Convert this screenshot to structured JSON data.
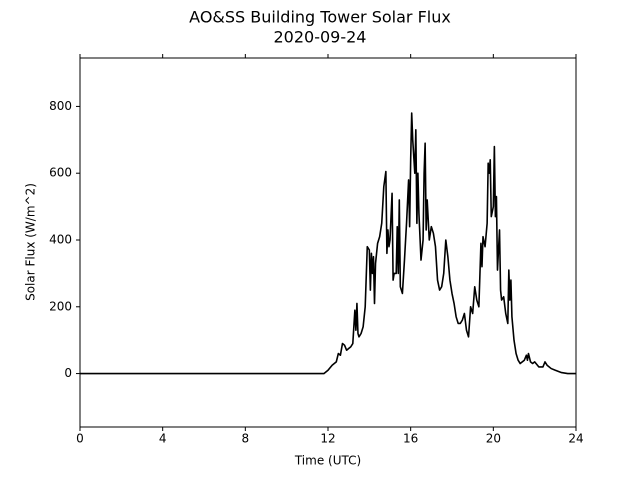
{
  "chart_data": {
    "type": "line",
    "title": "AO&SS Building Tower Solar Flux",
    "subtitle": "2020-09-24",
    "x_label": "Time (UTC)",
    "y_label": "Solar Flux (W/m^2)",
    "color": "#000000",
    "xlim": [
      0,
      24
    ],
    "xticks": [
      0,
      4,
      8,
      12,
      16,
      20,
      24
    ],
    "ylim": [
      -160,
      945
    ],
    "yticks": [
      0,
      200,
      400,
      600,
      800
    ],
    "x": [
      0,
      11.8,
      12.0,
      12.2,
      12.4,
      12.5,
      12.6,
      12.7,
      12.8,
      12.9,
      13.0,
      13.1,
      13.2,
      13.3,
      13.35,
      13.4,
      13.45,
      13.5,
      13.6,
      13.7,
      13.8,
      13.9,
      14.0,
      14.05,
      14.1,
      14.15,
      14.2,
      14.25,
      14.3,
      14.4,
      14.5,
      14.6,
      14.7,
      14.8,
      14.85,
      14.9,
      14.95,
      15.0,
      15.1,
      15.15,
      15.2,
      15.3,
      15.35,
      15.4,
      15.45,
      15.5,
      15.6,
      15.7,
      15.8,
      15.9,
      15.95,
      16.0,
      16.05,
      16.1,
      16.2,
      16.25,
      16.3,
      16.35,
      16.4,
      16.5,
      16.6,
      16.65,
      16.7,
      16.75,
      16.8,
      16.9,
      17.0,
      17.1,
      17.2,
      17.3,
      17.4,
      17.5,
      17.6,
      17.7,
      17.8,
      17.9,
      18.0,
      18.1,
      18.2,
      18.3,
      18.4,
      18.5,
      18.6,
      18.7,
      18.8,
      18.9,
      19.0,
      19.1,
      19.2,
      19.3,
      19.4,
      19.45,
      19.5,
      19.6,
      19.7,
      19.75,
      19.8,
      19.85,
      19.9,
      20.0,
      20.05,
      20.1,
      20.15,
      20.2,
      20.3,
      20.35,
      20.4,
      20.5,
      20.6,
      20.7,
      20.75,
      20.8,
      20.85,
      20.9,
      21.0,
      21.1,
      21.2,
      21.3,
      21.5,
      21.6,
      21.65,
      21.7,
      21.8,
      21.9,
      22.0,
      22.2,
      22.4,
      22.5,
      22.6,
      22.8,
      23.0,
      23.3,
      23.6,
      24
    ],
    "values": [
      0,
      0,
      10,
      25,
      35,
      60,
      55,
      90,
      85,
      70,
      75,
      80,
      90,
      190,
      130,
      210,
      120,
      110,
      120,
      140,
      200,
      380,
      370,
      250,
      360,
      300,
      350,
      210,
      330,
      390,
      410,
      450,
      560,
      605,
      360,
      430,
      380,
      400,
      540,
      280,
      300,
      300,
      440,
      300,
      520,
      260,
      240,
      340,
      450,
      580,
      440,
      640,
      780,
      700,
      600,
      730,
      450,
      600,
      480,
      340,
      400,
      600,
      690,
      430,
      520,
      400,
      440,
      420,
      380,
      280,
      250,
      260,
      300,
      400,
      350,
      280,
      240,
      210,
      170,
      150,
      150,
      160,
      180,
      130,
      110,
      200,
      180,
      260,
      220,
      200,
      390,
      320,
      410,
      380,
      450,
      630,
      600,
      640,
      470,
      500,
      680,
      470,
      530,
      310,
      430,
      250,
      220,
      230,
      180,
      150,
      310,
      220,
      280,
      170,
      100,
      60,
      40,
      30,
      40,
      55,
      40,
      60,
      35,
      30,
      35,
      20,
      20,
      35,
      25,
      15,
      10,
      3,
      0,
      0
    ]
  }
}
